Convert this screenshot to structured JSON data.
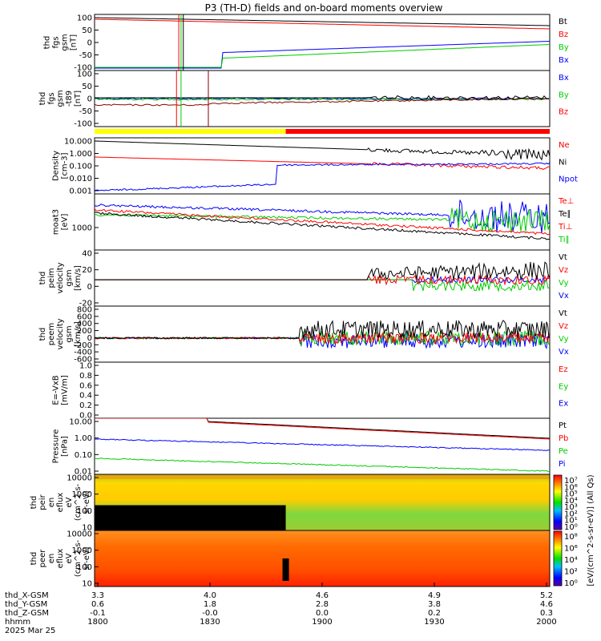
{
  "title": "P3 (TH-D) fields and on-board moments overview",
  "chart_data": {
    "type": "line",
    "x_ticks": [
      "1800",
      "1830",
      "1900",
      "1930",
      "2000"
    ],
    "date": "2025 Mar 25",
    "footer_rows": [
      {
        "label": "thd_X-GSM",
        "values": [
          "3.3",
          "4.0",
          "4.6",
          "4.9",
          "5.2"
        ]
      },
      {
        "label": "thd_Y-GSM",
        "values": [
          "0.6",
          "1.8",
          "2.8",
          "3.8",
          "4.6"
        ]
      },
      {
        "label": "thd_Z-GSM",
        "values": [
          "-0.1",
          "-0.0",
          "0.0",
          "0.2",
          "0.3"
        ]
      },
      {
        "label": "hhmm",
        "values": [
          "1800",
          "1830",
          "1900",
          "1930",
          "2000"
        ]
      }
    ],
    "mode_bar": {
      "yellow_until_fraction": 0.42,
      "colors": [
        "#ffff00",
        "#ff0000"
      ]
    },
    "panels": [
      {
        "id": "fgs-gsm",
        "ylabel_lines": [
          "thd",
          "fgs",
          "gsm",
          "[nT]"
        ],
        "ticks": [
          "100",
          "50",
          "0",
          "-50",
          "-100"
        ],
        "ylim": [
          -100,
          100
        ],
        "legend": [
          {
            "label": "Bt",
            "color": "#000000"
          },
          {
            "label": "Bz",
            "color": "#ff0000"
          },
          {
            "label": "By",
            "color": "#00cc00"
          },
          {
            "label": "Bx",
            "color": "#0000ff"
          }
        ]
      },
      {
        "id": "fgs-gsm-t89",
        "ylabel_lines": [
          "thd",
          "fgs",
          "gsm",
          "-t89",
          "[nT]"
        ],
        "ticks": [
          "100",
          "50",
          "0",
          "-50",
          "-100"
        ],
        "ylim": [
          -120,
          110
        ],
        "legend": [
          {
            "label": "Bx",
            "color": "#0000ff"
          },
          {
            "label": "By",
            "color": "#00cc00"
          },
          {
            "label": "Bz",
            "color": "#ff0000"
          }
        ]
      },
      {
        "id": "density",
        "ylabel_lines": [
          "Density",
          "[cm-3]"
        ],
        "ticks": [
          "10.000",
          "1.000",
          "0.100",
          "0.010",
          "0.001"
        ],
        "log": true,
        "legend": [
          {
            "label": "Ne",
            "color": "#ff0000"
          },
          {
            "label": "Ni",
            "color": "#000000"
          },
          {
            "label": "Npot",
            "color": "#0000ff"
          }
        ]
      },
      {
        "id": "temperature",
        "ylabel_lines": [
          "moat3",
          "[eV]"
        ],
        "ticks": [
          "1000"
        ],
        "log": true,
        "legend": [
          {
            "label": "Te⊥",
            "color": "#ff0000"
          },
          {
            "label": "Te∥",
            "color": "#000000"
          },
          {
            "label": "Ti⊥",
            "color": "#ff0000"
          },
          {
            "label": "Ti∥",
            "color": "#00cc00"
          }
        ]
      },
      {
        "id": "peim-velocity",
        "ylabel_lines": [
          "thd",
          "peim",
          "velocity",
          "gsm",
          "[km/s]"
        ],
        "ticks": [
          "40",
          "20",
          "0",
          "-20"
        ],
        "ylim": [
          -30,
          45
        ],
        "legend": [
          {
            "label": "Vt",
            "color": "#000000"
          },
          {
            "label": "Vz",
            "color": "#ff0000"
          },
          {
            "label": "Vy",
            "color": "#00cc00"
          },
          {
            "label": "Vx",
            "color": "#0000ff"
          }
        ]
      },
      {
        "id": "peem-velocity",
        "ylabel_lines": [
          "thd",
          "peem",
          "velocity",
          "gsm",
          "[km/s]"
        ],
        "ticks": [
          "800",
          "600",
          "400",
          "200",
          "0",
          "-200",
          "-400",
          "-600"
        ],
        "ylim": [
          -650,
          850
        ],
        "legend": [
          {
            "label": "Vt",
            "color": "#000000"
          },
          {
            "label": "Vz",
            "color": "#ff0000"
          },
          {
            "label": "Vy",
            "color": "#00cc00"
          },
          {
            "label": "Vx",
            "color": "#0000ff"
          }
        ]
      },
      {
        "id": "efield",
        "ylabel_lines": [
          "E=-VxB",
          "[mV/m]"
        ],
        "ticks": [
          "1.0",
          "0.8",
          "0.6",
          "0.4",
          "0.2",
          "0.0"
        ],
        "ylim": [
          0,
          1
        ],
        "legend": [
          {
            "label": "Ez",
            "color": "#ff0000"
          },
          {
            "label": "Ey",
            "color": "#00cc00"
          },
          {
            "label": "Ex",
            "color": "#0000ff"
          }
        ]
      },
      {
        "id": "pressure",
        "ylabel_lines": [
          "Pressure",
          "[nPa]"
        ],
        "ticks": [
          "10.00",
          "1.00",
          "0.10",
          "0.01"
        ],
        "log": true,
        "legend": [
          {
            "label": "Pt",
            "color": "#000000"
          },
          {
            "label": "Pb",
            "color": "#ff0000"
          },
          {
            "label": "Pe",
            "color": "#00cc00"
          },
          {
            "label": "Pi",
            "color": "#0000ff"
          }
        ]
      },
      {
        "id": "peir-spectrogram",
        "ylabel_lines": [
          "thd",
          "peir",
          "en",
          "eflux",
          "eV",
          "(cm^2-s-",
          "sr-eV)"
        ],
        "ticks": [
          "10000",
          "1000",
          "100",
          "10"
        ],
        "log": true,
        "colorbar_ticks": [
          "10⁷",
          "10⁶",
          "10⁵",
          "10⁴",
          "10³",
          "10²",
          "10¹",
          "10⁰"
        ]
      },
      {
        "id": "peer-spectrogram",
        "ylabel_lines": [
          "thd",
          "peer",
          "en",
          "eflux",
          "eV",
          "(cm^2-s-",
          "sr-eV)"
        ],
        "ticks": [
          "10000",
          "1000",
          "100",
          "10"
        ],
        "log": true,
        "colorbar_ticks": [
          "10⁸",
          "10⁶",
          "10⁴",
          "10²",
          "10⁰"
        ]
      }
    ],
    "colorbar_label": "[eV/(cm^2-s-sr-eV)] (All Qs)"
  }
}
